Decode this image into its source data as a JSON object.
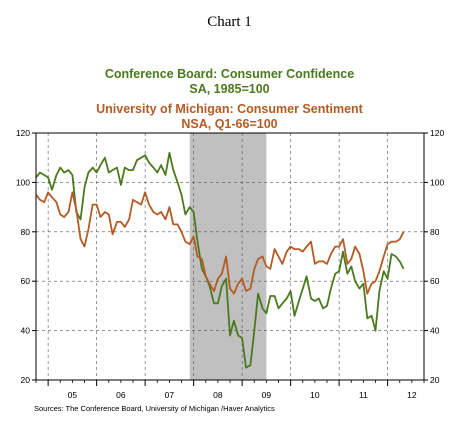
{
  "page_title": "Chart 1",
  "source": "Sources:  The Conference Board, University of Michigan /Haver Analytics",
  "colors": {
    "confidence": "#4a7a1e",
    "sentiment": "#b55a22",
    "recession": "#c0c0c0"
  },
  "chart_data": {
    "type": "line",
    "title_lines": [
      {
        "text": "Conference Board: Consumer Confidence",
        "series": "confidence"
      },
      {
        "text": "SA, 1985=100",
        "series": "confidence"
      },
      {
        "text": "University of Michigan: Consumer Sentiment",
        "series": "sentiment"
      },
      {
        "text": "NSA, Q1-66=100",
        "series": "sentiment"
      }
    ],
    "x_labels": [
      "05",
      "06",
      "07",
      "08",
      "09",
      "10",
      "11",
      "12"
    ],
    "xlim": [
      2004.75,
      2012.75
    ],
    "ylim": [
      20,
      120
    ],
    "y_ticks": [
      20,
      40,
      60,
      80,
      100,
      120
    ],
    "grid": true,
    "shaded_period": [
      2007.92,
      2009.5
    ],
    "series": [
      {
        "key": "confidence",
        "values": [
          [
            2004.75,
            102
          ],
          [
            2004.83,
            104
          ],
          [
            2004.92,
            103
          ],
          [
            2005.0,
            102
          ],
          [
            2005.08,
            97
          ],
          [
            2005.17,
            103
          ],
          [
            2005.25,
            106
          ],
          [
            2005.33,
            104
          ],
          [
            2005.42,
            105
          ],
          [
            2005.5,
            103
          ],
          [
            2005.58,
            88
          ],
          [
            2005.67,
            85
          ],
          [
            2005.75,
            98
          ],
          [
            2005.83,
            104
          ],
          [
            2005.92,
            106
          ],
          [
            2006.0,
            104
          ],
          [
            2006.08,
            107
          ],
          [
            2006.17,
            110
          ],
          [
            2006.25,
            104
          ],
          [
            2006.33,
            105
          ],
          [
            2006.42,
            106
          ],
          [
            2006.5,
            99
          ],
          [
            2006.58,
            106
          ],
          [
            2006.67,
            105
          ],
          [
            2006.75,
            105
          ],
          [
            2006.83,
            109
          ],
          [
            2006.92,
            110
          ],
          [
            2007.0,
            111
          ],
          [
            2007.08,
            108
          ],
          [
            2007.17,
            106
          ],
          [
            2007.25,
            104
          ],
          [
            2007.33,
            107
          ],
          [
            2007.42,
            103
          ],
          [
            2007.5,
            112
          ],
          [
            2007.58,
            105
          ],
          [
            2007.67,
            100
          ],
          [
            2007.75,
            95
          ],
          [
            2007.83,
            87
          ],
          [
            2007.92,
            90
          ],
          [
            2008.0,
            88
          ],
          [
            2008.08,
            76
          ],
          [
            2008.17,
            65
          ],
          [
            2008.25,
            62
          ],
          [
            2008.33,
            58
          ],
          [
            2008.42,
            51
          ],
          [
            2008.5,
            51
          ],
          [
            2008.58,
            58
          ],
          [
            2008.67,
            61
          ],
          [
            2008.75,
            38
          ],
          [
            2008.83,
            44
          ],
          [
            2008.92,
            38
          ],
          [
            2009.0,
            37
          ],
          [
            2009.08,
            25
          ],
          [
            2009.17,
            26
          ],
          [
            2009.25,
            40
          ],
          [
            2009.33,
            55
          ],
          [
            2009.42,
            49
          ],
          [
            2009.5,
            47
          ],
          [
            2009.58,
            54
          ],
          [
            2009.67,
            54
          ],
          [
            2009.75,
            49
          ],
          [
            2009.83,
            51
          ],
          [
            2009.92,
            53
          ],
          [
            2010.0,
            56
          ],
          [
            2010.08,
            46
          ],
          [
            2010.17,
            52
          ],
          [
            2010.25,
            57
          ],
          [
            2010.33,
            62
          ],
          [
            2010.42,
            53
          ],
          [
            2010.5,
            52
          ],
          [
            2010.58,
            53
          ],
          [
            2010.67,
            49
          ],
          [
            2010.75,
            50
          ],
          [
            2010.83,
            57
          ],
          [
            2010.92,
            63
          ],
          [
            2011.0,
            64
          ],
          [
            2011.08,
            72
          ],
          [
            2011.17,
            63
          ],
          [
            2011.25,
            66
          ],
          [
            2011.33,
            60
          ],
          [
            2011.42,
            57
          ],
          [
            2011.5,
            59
          ],
          [
            2011.58,
            45
          ],
          [
            2011.67,
            46
          ],
          [
            2011.75,
            40
          ],
          [
            2011.83,
            56
          ],
          [
            2011.92,
            64
          ],
          [
            2012.0,
            61
          ],
          [
            2012.08,
            71
          ],
          [
            2012.17,
            70
          ],
          [
            2012.25,
            68
          ],
          [
            2012.33,
            65
          ]
        ]
      },
      {
        "key": "sentiment",
        "values": [
          [
            2004.75,
            95
          ],
          [
            2004.83,
            93
          ],
          [
            2004.92,
            92
          ],
          [
            2005.0,
            96
          ],
          [
            2005.08,
            94
          ],
          [
            2005.17,
            92
          ],
          [
            2005.25,
            87
          ],
          [
            2005.33,
            86
          ],
          [
            2005.42,
            88
          ],
          [
            2005.5,
            96
          ],
          [
            2005.58,
            89
          ],
          [
            2005.67,
            77
          ],
          [
            2005.75,
            74
          ],
          [
            2005.83,
            81
          ],
          [
            2005.92,
            91
          ],
          [
            2006.0,
            91
          ],
          [
            2006.08,
            86
          ],
          [
            2006.17,
            88
          ],
          [
            2006.25,
            87
          ],
          [
            2006.33,
            79
          ],
          [
            2006.42,
            84
          ],
          [
            2006.5,
            84
          ],
          [
            2006.58,
            82
          ],
          [
            2006.67,
            85
          ],
          [
            2006.75,
            93
          ],
          [
            2006.83,
            92
          ],
          [
            2006.92,
            91
          ],
          [
            2007.0,
            96
          ],
          [
            2007.08,
            91
          ],
          [
            2007.17,
            88
          ],
          [
            2007.25,
            87
          ],
          [
            2007.33,
            88
          ],
          [
            2007.42,
            85
          ],
          [
            2007.5,
            90
          ],
          [
            2007.58,
            83
          ],
          [
            2007.67,
            83
          ],
          [
            2007.75,
            80
          ],
          [
            2007.83,
            76
          ],
          [
            2007.92,
            75
          ],
          [
            2008.0,
            78
          ],
          [
            2008.08,
            70
          ],
          [
            2008.17,
            69
          ],
          [
            2008.25,
            62
          ],
          [
            2008.33,
            59
          ],
          [
            2008.42,
            56
          ],
          [
            2008.5,
            61
          ],
          [
            2008.58,
            63
          ],
          [
            2008.67,
            70
          ],
          [
            2008.75,
            57
          ],
          [
            2008.83,
            55
          ],
          [
            2008.92,
            59
          ],
          [
            2009.0,
            61
          ],
          [
            2009.08,
            56
          ],
          [
            2009.17,
            57
          ],
          [
            2009.25,
            65
          ],
          [
            2009.33,
            69
          ],
          [
            2009.42,
            70
          ],
          [
            2009.5,
            66
          ],
          [
            2009.58,
            65
          ],
          [
            2009.67,
            73
          ],
          [
            2009.75,
            70
          ],
          [
            2009.83,
            67
          ],
          [
            2009.92,
            72
          ],
          [
            2010.0,
            74
          ],
          [
            2010.08,
            73
          ],
          [
            2010.17,
            73
          ],
          [
            2010.25,
            72
          ],
          [
            2010.33,
            74
          ],
          [
            2010.42,
            76
          ],
          [
            2010.5,
            67
          ],
          [
            2010.58,
            68
          ],
          [
            2010.67,
            68
          ],
          [
            2010.75,
            67
          ],
          [
            2010.83,
            71
          ],
          [
            2010.92,
            74
          ],
          [
            2011.0,
            74
          ],
          [
            2011.08,
            77
          ],
          [
            2011.17,
            67
          ],
          [
            2011.25,
            69
          ],
          [
            2011.33,
            74
          ],
          [
            2011.42,
            71
          ],
          [
            2011.5,
            64
          ],
          [
            2011.58,
            55
          ],
          [
            2011.67,
            59
          ],
          [
            2011.75,
            60
          ],
          [
            2011.83,
            64
          ],
          [
            2011.92,
            70
          ],
          [
            2012.0,
            75
          ],
          [
            2012.08,
            76
          ],
          [
            2012.17,
            76
          ],
          [
            2012.25,
            77
          ],
          [
            2012.33,
            80
          ]
        ]
      }
    ]
  }
}
